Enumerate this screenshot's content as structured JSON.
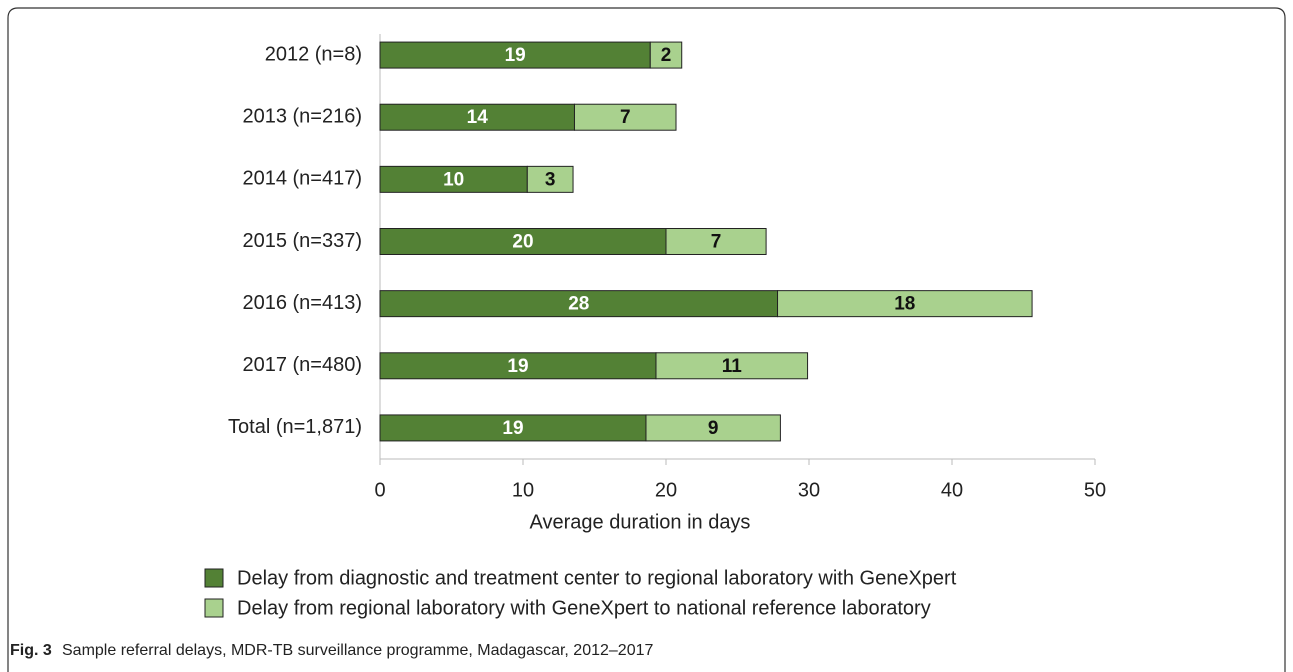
{
  "chart_data": {
    "type": "stacked-barh",
    "categories": [
      "2012 (n=8)",
      "2013 (n=216)",
      "2014 (n=417)",
      "2015 (n=337)",
      "2016 (n=413)",
      "2017 (n=480)",
      "Total (n=1,871)"
    ],
    "series": [
      {
        "name": "Delay from diagnostic and treatment center to regional laboratory with GeneXpert",
        "color": "#538135",
        "values": [
          18.9,
          13.6,
          10.3,
          20.0,
          27.8,
          19.3,
          18.6
        ],
        "value_labels": [
          "19",
          "14",
          "10",
          "20",
          "28",
          "19",
          "19"
        ]
      },
      {
        "name": "Delay from regional laboratory with GeneXpert to national reference laboratory",
        "color": "#a9d18e",
        "values": [
          2.2,
          7.1,
          3.2,
          7.0,
          17.8,
          10.6,
          9.4
        ],
        "value_labels": [
          "2",
          "7",
          "3",
          "7",
          "18",
          "11",
          "9"
        ]
      }
    ],
    "xlabel": "Average duration in days",
    "xlim": [
      0,
      50
    ],
    "xticks": [
      0,
      10,
      20,
      30,
      40,
      50
    ],
    "legend": "bottom",
    "caption": {
      "label": "Fig. 3",
      "text": "Sample referral delays, MDR-TB surveillance programme, Madagascar, 2012–2017"
    }
  }
}
